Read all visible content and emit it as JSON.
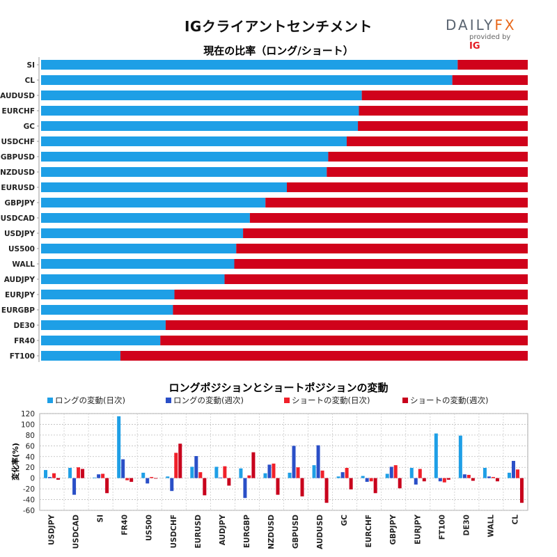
{
  "header": {
    "title": "IGクライアントセンチメント",
    "logo_text_main": "DAILY",
    "logo_text_fx": "FX",
    "logo_provided": "provided by",
    "logo_ig": "IG"
  },
  "colors": {
    "long_daily": "#1e9fe6",
    "long_weekly": "#2a4fc7",
    "short_daily": "#f0202a",
    "short_weekly": "#c8001c",
    "ratio_long": "#1e9fe6",
    "ratio_short": "#d0021b"
  },
  "chart_data": [
    {
      "type": "bar",
      "orientation": "horizontal-stacked",
      "title": "現在の比率（ロング/ショート）",
      "categories": [
        "SI",
        "CL",
        "AUDUSD",
        "EURCHF",
        "GC",
        "USDCHF",
        "GBPUSD",
        "NZDUSD",
        "EURUSD",
        "GBPJPY",
        "USDCAD",
        "USDJPY",
        "US500",
        "WALL",
        "AUDJPY",
        "EURJPY",
        "EURGBP",
        "DE30",
        "FR40",
        "FT100"
      ],
      "series": [
        {
          "name": "ロング",
          "values": [
            85.6,
            84.5,
            65.9,
            65.3,
            65.1,
            62.8,
            59.0,
            58.7,
            50.5,
            46.1,
            42.9,
            41.5,
            40.1,
            39.7,
            37.7,
            27.4,
            27.1,
            25.6,
            24.5,
            16.3
          ]
        },
        {
          "name": "ショート",
          "values": [
            14.4,
            15.5,
            34.1,
            34.7,
            34.9,
            37.2,
            41.0,
            41.3,
            49.5,
            53.9,
            57.1,
            58.5,
            59.9,
            60.3,
            62.3,
            72.6,
            72.9,
            74.4,
            75.5,
            83.7
          ]
        }
      ],
      "xlim": [
        0,
        100
      ]
    },
    {
      "type": "bar",
      "title": "ロングポジションとショートポジションの変動",
      "ylabel": "変化率(%)",
      "ylim": [
        -60,
        120
      ],
      "yticks": [
        -60,
        -40,
        -20,
        0,
        20,
        40,
        60,
        80,
        100,
        120
      ],
      "categories": [
        "USDJPY",
        "USDCAD",
        "SI",
        "FR40",
        "US500",
        "USDCHF",
        "EURUSD",
        "AUDJPY",
        "EURGBP",
        "NZDUSD",
        "GBPUSD",
        "AUDUSD",
        "GC",
        "EURCHF",
        "GBPJPY",
        "EURJPY",
        "FT100",
        "DE30",
        "WALL",
        "CL"
      ],
      "series": [
        {
          "name": "ロングの変動(日次)",
          "values": [
            15,
            19,
            1,
            115,
            10,
            3,
            21,
            21,
            18,
            9,
            10,
            24,
            3,
            4,
            8,
            19,
            83,
            79,
            19,
            10
          ]
        },
        {
          "name": "ロングの変動(週次)",
          "values": [
            2,
            -31,
            7,
            35,
            -10,
            -24,
            41,
            1,
            -37,
            25,
            60,
            61,
            11,
            -7,
            21,
            -12,
            -6,
            7,
            3,
            32
          ]
        },
        {
          "name": "ショートの変動(日次)",
          "values": [
            9,
            20,
            8,
            -4,
            2,
            47,
            11,
            22,
            5,
            27,
            20,
            14,
            19,
            -6,
            24,
            17,
            -8,
            6,
            2,
            16
          ]
        },
        {
          "name": "ショートの変動(週次)",
          "values": [
            -3,
            17,
            -28,
            -7,
            0,
            64,
            -32,
            -14,
            48,
            -31,
            -34,
            -46,
            -21,
            -28,
            -19,
            -6,
            -3,
            -5,
            -6,
            -46
          ]
        }
      ]
    }
  ]
}
